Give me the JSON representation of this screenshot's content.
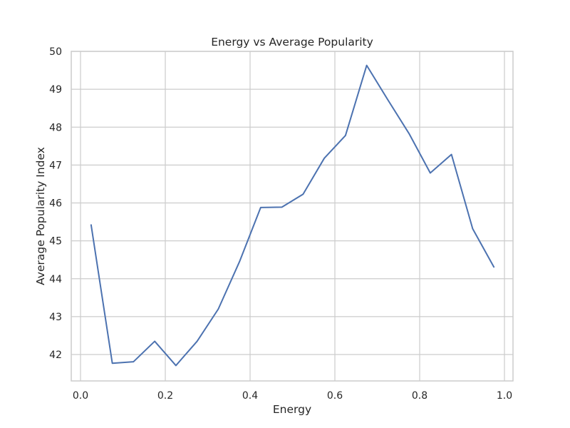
{
  "chart_data": {
    "type": "line",
    "title": "Energy vs Average Popularity",
    "xlabel": "Energy",
    "ylabel": "Average Popularity Index",
    "xlim": [
      -0.0,
      1.0
    ],
    "ylim": [
      41.3,
      50
    ],
    "xticks": [
      "0.0",
      "0.2",
      "0.4",
      "0.6",
      "0.8",
      "1.0"
    ],
    "yticks": [
      "42",
      "43",
      "44",
      "45",
      "46",
      "47",
      "48",
      "49",
      "50"
    ],
    "grid": true,
    "line_color": "#4C72B0",
    "series": [
      {
        "x": [
          0.025,
          0.075,
          0.125,
          0.175,
          0.225,
          0.275,
          0.325,
          0.375,
          0.425,
          0.475,
          0.525,
          0.575,
          0.625,
          0.675,
          0.725,
          0.775,
          0.825,
          0.875,
          0.925,
          0.975
        ],
        "values": [
          45.42,
          41.77,
          41.81,
          42.35,
          41.71,
          42.35,
          43.2,
          44.45,
          45.88,
          45.89,
          46.23,
          47.18,
          47.78,
          49.63,
          48.72,
          47.83,
          46.79,
          47.28,
          45.32,
          44.31
        ]
      }
    ]
  }
}
